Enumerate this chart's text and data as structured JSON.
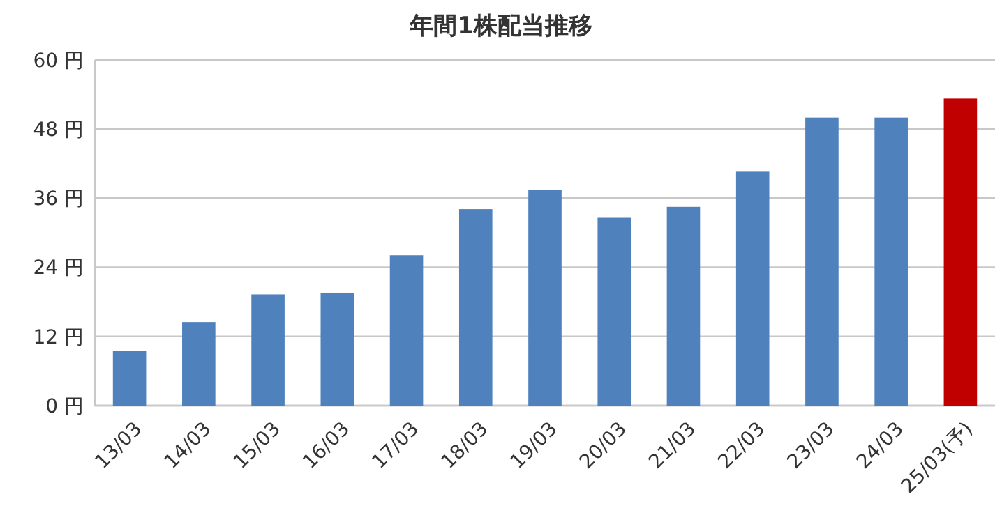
{
  "chart_data": {
    "type": "bar",
    "title": "年間1株配当推移",
    "categories": [
      "13/03",
      "14/03",
      "15/03",
      "16/03",
      "17/03",
      "18/03",
      "19/03",
      "20/03",
      "21/03",
      "22/03",
      "23/03",
      "24/03",
      "25/03(予)"
    ],
    "values": [
      9.5,
      14.5,
      19.3,
      19.6,
      26.1,
      34.1,
      37.4,
      32.6,
      34.5,
      40.6,
      50,
      50,
      53.3
    ],
    "colors": [
      "#4f81bd",
      "#4f81bd",
      "#4f81bd",
      "#4f81bd",
      "#4f81bd",
      "#4f81bd",
      "#4f81bd",
      "#4f81bd",
      "#4f81bd",
      "#4f81bd",
      "#4f81bd",
      "#4f81bd",
      "#c00000"
    ],
    "ylim": [
      0,
      60
    ],
    "yticks": [
      {
        "value": 0,
        "label": "0 円"
      },
      {
        "value": 12,
        "label": "12 円"
      },
      {
        "value": 24,
        "label": "24 円"
      },
      {
        "value": 36,
        "label": "36 円"
      },
      {
        "value": 48,
        "label": "48 円"
      },
      {
        "value": 60,
        "label": "60 円"
      }
    ],
    "grid": "y"
  }
}
